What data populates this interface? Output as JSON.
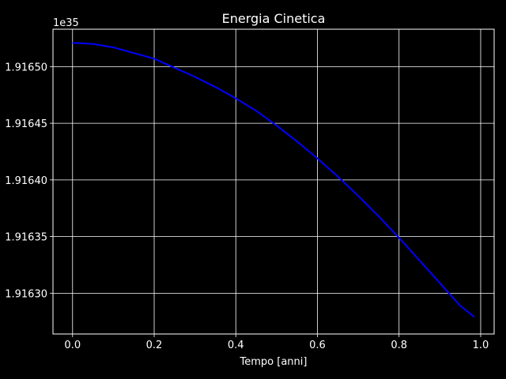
{
  "chart_data": {
    "type": "line",
    "title": "Energia Cinetica",
    "xlabel": "Tempo [anni]",
    "ylabel": "",
    "offset_label": "1e35",
    "xlim": [
      -0.048,
      1.033
    ],
    "ylim": [
      1.916264,
      1.916533
    ],
    "x_ticks": [
      0.0,
      0.2,
      0.4,
      0.6,
      0.8,
      1.0
    ],
    "x_tick_labels": [
      "0.0",
      "0.2",
      "0.4",
      "0.6",
      "0.8",
      "1.0"
    ],
    "y_ticks": [
      1.9163,
      1.91635,
      1.9164,
      1.91645,
      1.9165
    ],
    "y_tick_labels": [
      "1.91630",
      "1.91635",
      "1.91640",
      "1.91645",
      "1.91650"
    ],
    "grid": true,
    "series": [
      {
        "color": "#0000ff",
        "x": [
          0.0,
          0.05,
          0.1,
          0.15,
          0.2,
          0.25,
          0.3,
          0.35,
          0.4,
          0.45,
          0.5,
          0.55,
          0.6,
          0.65,
          0.7,
          0.75,
          0.8,
          0.85,
          0.9,
          0.95,
          0.985
        ],
        "y": [
          1.916521,
          1.91652,
          1.916517,
          1.916512,
          1.916507,
          1.916499,
          1.916491,
          1.916482,
          1.916472,
          1.916461,
          1.916448,
          1.916434,
          1.916419,
          1.916403,
          1.916386,
          1.916368,
          1.916349,
          1.916329,
          1.916309,
          1.916289,
          1.916279
        ]
      }
    ]
  }
}
